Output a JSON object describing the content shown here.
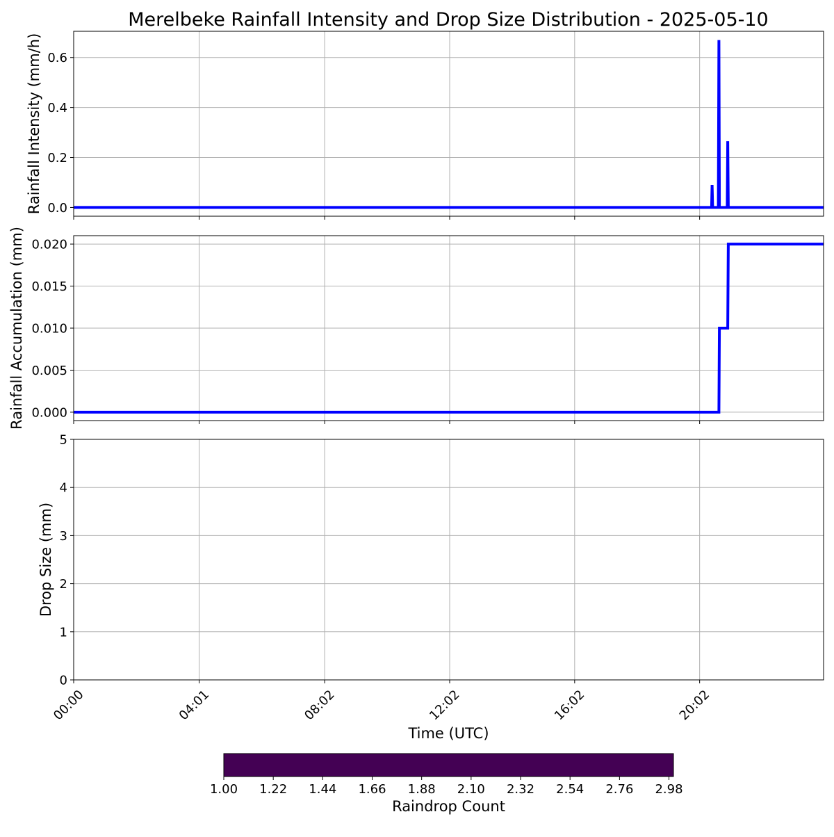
{
  "chart_data": {
    "type": "line",
    "title": "Merelbeke Rainfall Intensity and Drop Size Distribution - 2025-05-10",
    "xlabel": "Time (UTC)",
    "x_tick_labels": [
      "00:00",
      "04:01",
      "08:02",
      "12:02",
      "16:02",
      "20:02"
    ],
    "x_tick_minutes": [
      0,
      241,
      482,
      722,
      962,
      1202
    ],
    "x_range_minutes": [
      0,
      1440
    ],
    "grid": true,
    "line_color": "#0000ff",
    "panels": [
      {
        "name": "intensity",
        "type": "line",
        "ylabel": "Rainfall Intensity (mm/h)",
        "ylim": [
          -0.035,
          0.705
        ],
        "y_ticks": [
          0.0,
          0.2,
          0.4,
          0.6
        ],
        "y_tick_labels": [
          "0.0",
          "0.2",
          "0.4",
          "0.6"
        ],
        "series": [
          {
            "x_minutes": [
              0,
              1225,
              1226,
              1227,
              1238,
              1239,
              1240,
              1255,
              1256,
              1257,
              1440
            ],
            "y": [
              0,
              0,
              0.09,
              0,
              0,
              0.67,
              0,
              0,
              0.265,
              0,
              0
            ]
          }
        ]
      },
      {
        "name": "accumulation",
        "type": "line",
        "ylabel": "Rainfall Accumulation (mm)",
        "ylim": [
          -0.001,
          0.021
        ],
        "y_ticks": [
          0.0,
          0.005,
          0.01,
          0.015,
          0.02
        ],
        "y_tick_labels": [
          "0.000",
          "0.005",
          "0.010",
          "0.015",
          "0.020"
        ],
        "series": [
          {
            "x_minutes": [
              0,
              1239,
              1240,
              1256,
              1257,
              1440
            ],
            "y": [
              0,
              0,
              0.01,
              0.01,
              0.02,
              0.02
            ]
          }
        ]
      },
      {
        "name": "drop-size",
        "type": "scatter",
        "ylabel": "Drop Size (mm)",
        "ylim": [
          0,
          5
        ],
        "y_ticks": [
          0,
          1,
          2,
          3,
          4,
          5
        ],
        "y_tick_labels": [
          "0",
          "1",
          "2",
          "3",
          "4",
          "5"
        ],
        "points": []
      }
    ],
    "colorbar": {
      "label": "Raindrop Count",
      "range": [
        1.0,
        3.0
      ],
      "tick_values": [
        1.0,
        1.22,
        1.44,
        1.66,
        1.88,
        2.1,
        2.32,
        2.54,
        2.76,
        2.98
      ],
      "tick_labels": [
        "1.00",
        "1.22",
        "1.44",
        "1.66",
        "1.88",
        "2.10",
        "2.32",
        "2.54",
        "2.76",
        "2.98"
      ],
      "color": "#440154"
    }
  }
}
